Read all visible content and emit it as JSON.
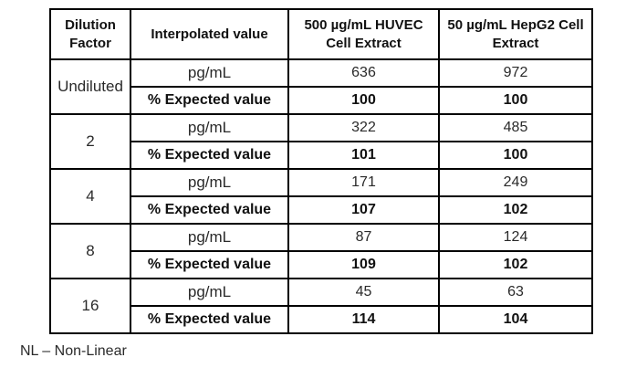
{
  "table": {
    "columns": [
      "Dilution Factor",
      "Interpolated value",
      "500 µg/mL HUVEC Cell Extract",
      "50 µg/mL HepG2 Cell Extract"
    ],
    "row_labels": {
      "concentration": "pg/mL",
      "percent_expected": "% Expected value"
    },
    "groups": [
      {
        "dilution": "Undiluted",
        "pg_ml": [
          "636",
          "972"
        ],
        "percent_expected": [
          "100",
          "100"
        ]
      },
      {
        "dilution": "2",
        "pg_ml": [
          "322",
          "485"
        ],
        "percent_expected": [
          "101",
          "100"
        ]
      },
      {
        "dilution": "4",
        "pg_ml": [
          "171",
          "249"
        ],
        "percent_expected": [
          "107",
          "102"
        ]
      },
      {
        "dilution": "8",
        "pg_ml": [
          "87",
          "124"
        ],
        "percent_expected": [
          "109",
          "102"
        ]
      },
      {
        "dilution": "16",
        "pg_ml": [
          "45",
          "63"
        ],
        "percent_expected": [
          "114",
          "104"
        ]
      }
    ]
  },
  "footnote": "NL – Non-Linear",
  "colors": {
    "border": "#000000",
    "text": "#1a1a1a",
    "background": "#ffffff"
  }
}
